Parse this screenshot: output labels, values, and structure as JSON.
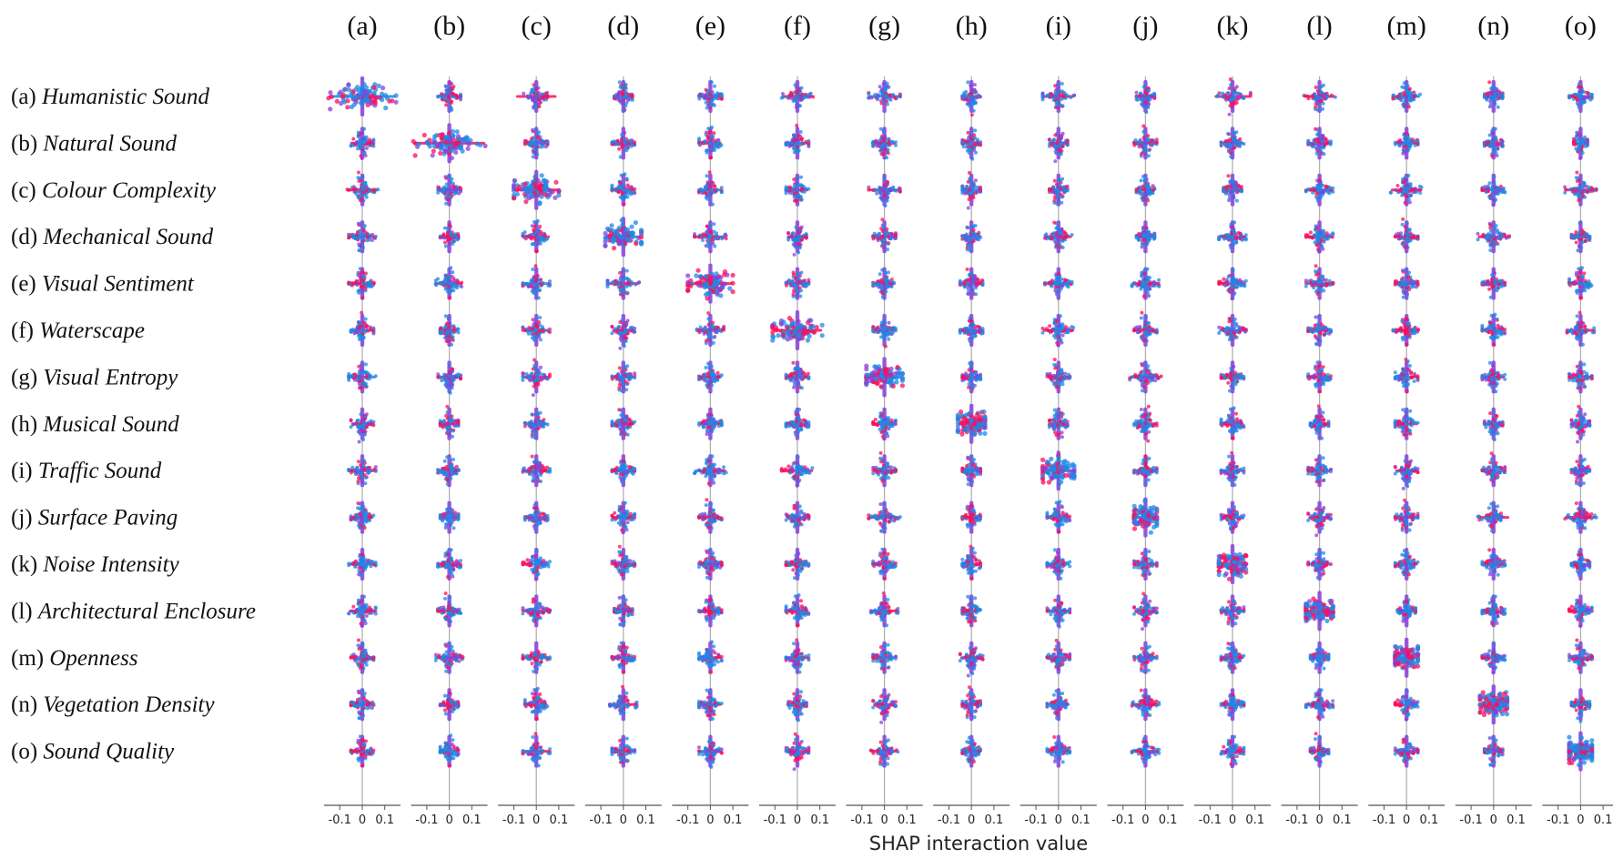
{
  "chart_data": {
    "type": "scatter",
    "subtype": "SHAP interaction summary matrix (beeswarm)",
    "columns": [
      "(a)",
      "(b)",
      "(c)",
      "(d)",
      "(e)",
      "(f)",
      "(g)",
      "(h)",
      "(i)",
      "(j)",
      "(k)",
      "(l)",
      "(m)",
      "(n)",
      "(o)"
    ],
    "rows": [
      {
        "tag": "(a)",
        "name": "Humanistic Sound"
      },
      {
        "tag": "(b)",
        "name": "Natural Sound"
      },
      {
        "tag": "(c)",
        "name": "Colour Complexity"
      },
      {
        "tag": "(d)",
        "name": "Mechanical Sound"
      },
      {
        "tag": "(e)",
        "name": "Visual Sentiment"
      },
      {
        "tag": "(f)",
        "name": "Waterscape"
      },
      {
        "tag": "(g)",
        "name": "Visual Entropy"
      },
      {
        "tag": "(h)",
        "name": "Musical Sound"
      },
      {
        "tag": "(i)",
        "name": "Traffic Sound"
      },
      {
        "tag": "(j)",
        "name": "Surface Paving"
      },
      {
        "tag": "(k)",
        "name": "Noise Intensity"
      },
      {
        "tag": "(l)",
        "name": "Architectural Enclosure"
      },
      {
        "tag": "(m)",
        "name": "Openness"
      },
      {
        "tag": "(n)",
        "name": "Vegetation Density"
      },
      {
        "tag": "(o)",
        "name": "Sound Quality"
      }
    ],
    "x_ticks": [
      "-0.1",
      "0",
      "0.1"
    ],
    "x_tick_values": [
      -0.1,
      0,
      0.1
    ],
    "xlim": [
      -0.17,
      0.17
    ],
    "xlabel": "SHAP interaction value",
    "colors": {
      "low": "#1e88e5",
      "high": "#ff0d57",
      "mid": "#8a3fd9",
      "zero_line": "#b0b0b0",
      "axis": "#555555"
    },
    "spread": [
      [
        0.15,
        0.05,
        0.09,
        0.04,
        0.05,
        0.07,
        0.07,
        0.04,
        0.07,
        0.04,
        0.08,
        0.07,
        0.06,
        0.04,
        0.05
      ],
      [
        0.05,
        0.16,
        0.05,
        0.05,
        0.05,
        0.05,
        0.05,
        0.04,
        0.04,
        0.05,
        0.05,
        0.05,
        0.05,
        0.04,
        0.03
      ],
      [
        0.07,
        0.05,
        0.1,
        0.05,
        0.05,
        0.05,
        0.07,
        0.04,
        0.04,
        0.04,
        0.04,
        0.06,
        0.07,
        0.05,
        0.07
      ],
      [
        0.06,
        0.04,
        0.06,
        0.08,
        0.07,
        0.04,
        0.05,
        0.04,
        0.06,
        0.04,
        0.06,
        0.06,
        0.05,
        0.07,
        0.04
      ],
      [
        0.06,
        0.06,
        0.06,
        0.07,
        0.1,
        0.05,
        0.05,
        0.05,
        0.06,
        0.06,
        0.06,
        0.06,
        0.05,
        0.05,
        0.05
      ],
      [
        0.05,
        0.04,
        0.06,
        0.05,
        0.06,
        0.11,
        0.05,
        0.05,
        0.07,
        0.05,
        0.06,
        0.05,
        0.06,
        0.05,
        0.06
      ],
      [
        0.06,
        0.05,
        0.06,
        0.05,
        0.05,
        0.05,
        0.08,
        0.04,
        0.05,
        0.07,
        0.05,
        0.05,
        0.05,
        0.05,
        0.05
      ],
      [
        0.05,
        0.04,
        0.05,
        0.05,
        0.05,
        0.05,
        0.05,
        0.06,
        0.04,
        0.05,
        0.05,
        0.04,
        0.05,
        0.04,
        0.04
      ],
      [
        0.06,
        0.05,
        0.06,
        0.05,
        0.07,
        0.07,
        0.05,
        0.04,
        0.07,
        0.05,
        0.05,
        0.05,
        0.05,
        0.05,
        0.04
      ],
      [
        0.05,
        0.04,
        0.05,
        0.05,
        0.05,
        0.05,
        0.07,
        0.04,
        0.05,
        0.05,
        0.05,
        0.05,
        0.05,
        0.07,
        0.07
      ],
      [
        0.06,
        0.05,
        0.06,
        0.05,
        0.05,
        0.05,
        0.05,
        0.04,
        0.05,
        0.05,
        0.06,
        0.05,
        0.05,
        0.05,
        0.04
      ],
      [
        0.06,
        0.05,
        0.06,
        0.04,
        0.05,
        0.05,
        0.06,
        0.04,
        0.05,
        0.05,
        0.05,
        0.06,
        0.04,
        0.05,
        0.05
      ],
      [
        0.05,
        0.06,
        0.06,
        0.05,
        0.05,
        0.05,
        0.05,
        0.05,
        0.05,
        0.05,
        0.05,
        0.04,
        0.05,
        0.05,
        0.05
      ],
      [
        0.05,
        0.04,
        0.05,
        0.06,
        0.05,
        0.04,
        0.05,
        0.04,
        0.05,
        0.06,
        0.05,
        0.06,
        0.05,
        0.06,
        0.04
      ],
      [
        0.05,
        0.04,
        0.06,
        0.05,
        0.05,
        0.05,
        0.06,
        0.04,
        0.05,
        0.06,
        0.05,
        0.04,
        0.05,
        0.04,
        0.05
      ]
    ]
  }
}
